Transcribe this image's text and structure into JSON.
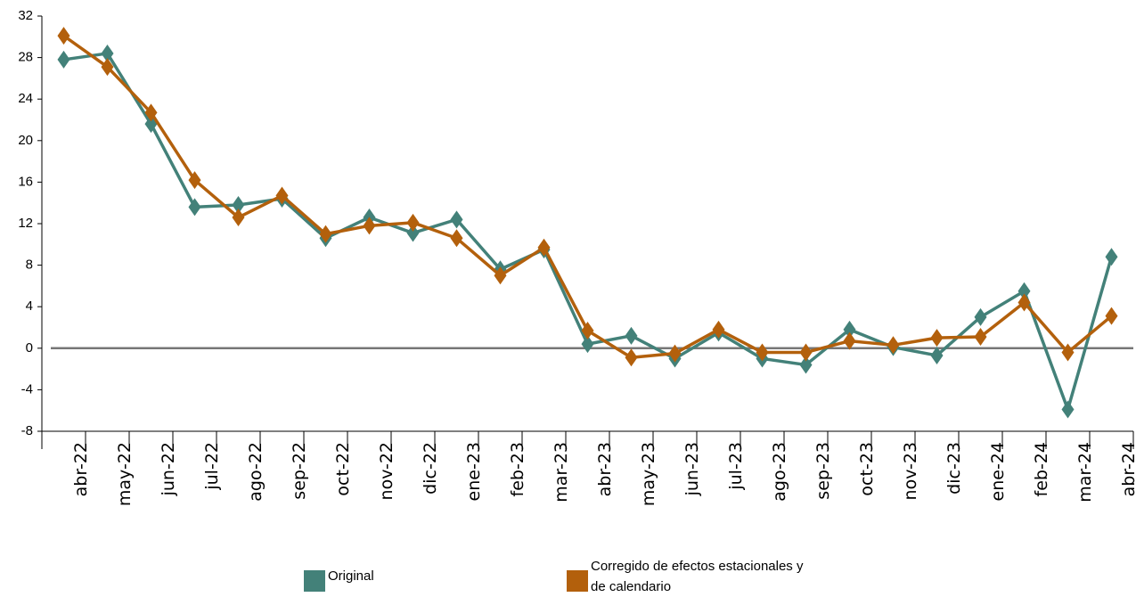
{
  "chart_data": {
    "type": "line",
    "categories": [
      "abr-22",
      "may-22",
      "jun-22",
      "jul-22",
      "ago-22",
      "sep-22",
      "oct-22",
      "nov-22",
      "dic-22",
      "ene-23",
      "feb-23",
      "mar-23",
      "abr-23",
      "may-23",
      "jun-23",
      "jul-23",
      "ago-23",
      "sep-23",
      "oct-23",
      "nov-23",
      "dic-23",
      "ene-24",
      "feb-24",
      "mar-24",
      "abr-24"
    ],
    "series": [
      {
        "name": "Original",
        "color": "#438179",
        "values": [
          27.8,
          28.4,
          21.6,
          13.6,
          13.8,
          14.4,
          10.6,
          12.6,
          11.1,
          12.4,
          7.6,
          9.5,
          0.4,
          1.2,
          -1.0,
          1.5,
          -1.0,
          -1.6,
          1.8,
          0.1,
          -0.7,
          3.0,
          5.5,
          -5.9,
          8.8
        ]
      },
      {
        "name": "Corregido de efectos estacionales y de calendario",
        "color": "#b3600c",
        "values": [
          30.1,
          27.1,
          22.7,
          16.2,
          12.6,
          14.7,
          11.0,
          11.8,
          12.1,
          10.6,
          7.0,
          9.7,
          1.7,
          -0.9,
          -0.5,
          1.8,
          -0.4,
          -0.4,
          0.7,
          0.3,
          1.0,
          1.1,
          4.4,
          -0.4,
          3.1
        ]
      }
    ],
    "ylim": [
      -8,
      32
    ],
    "yticks": [
      -8,
      -4,
      0,
      4,
      8,
      12,
      16,
      20,
      24,
      28,
      32
    ]
  }
}
